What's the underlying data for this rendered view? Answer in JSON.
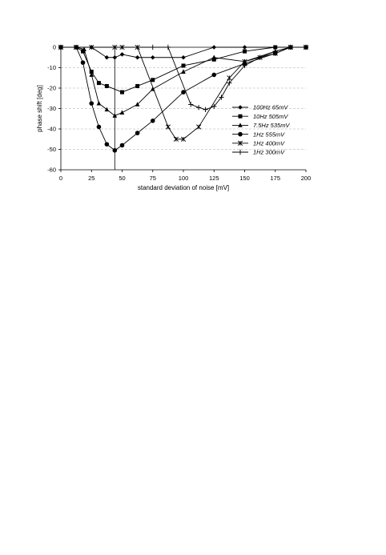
{
  "chart_data": {
    "type": "line",
    "xlabel": "standard deviation of noise [mV]",
    "ylabel": "phase shift [deg]",
    "xlim": [
      0,
      200
    ],
    "ylim": [
      -60,
      0
    ],
    "xticks": [
      0,
      25,
      50,
      75,
      100,
      125,
      150,
      175,
      200
    ],
    "yticks": [
      0,
      -10,
      -20,
      -30,
      -40,
      -50,
      -60
    ],
    "grid": "horizontal dashed",
    "vline": 44,
    "legend_position": "right",
    "series": [
      {
        "name": "100Hz   65mV",
        "marker": "diamond",
        "points": [
          [
            0,
            0
          ],
          [
            12.5,
            0
          ],
          [
            25,
            0
          ],
          [
            37.5,
            -5
          ],
          [
            44,
            -5
          ],
          [
            50,
            -3.5
          ],
          [
            62.5,
            -5
          ],
          [
            75,
            -5
          ],
          [
            100,
            -5
          ],
          [
            125,
            0
          ],
          [
            150,
            0
          ],
          [
            175,
            0
          ],
          [
            187.5,
            0
          ],
          [
            200,
            0
          ]
        ]
      },
      {
        "name": "10Hz   505mV",
        "marker": "square",
        "points": [
          [
            0,
            0
          ],
          [
            12.5,
            0
          ],
          [
            18,
            -2
          ],
          [
            25,
            -12
          ],
          [
            31,
            -17.5
          ],
          [
            37.5,
            -19
          ],
          [
            50,
            -22
          ],
          [
            62.5,
            -19
          ],
          [
            75,
            -16
          ],
          [
            100,
            -9
          ],
          [
            125,
            -6
          ],
          [
            150,
            -2
          ],
          [
            175,
            0
          ],
          [
            187.5,
            0
          ],
          [
            200,
            0
          ]
        ]
      },
      {
        "name": "7.5Hz  535mV",
        "marker": "triangle",
        "points": [
          [
            0,
            0
          ],
          [
            12.5,
            0
          ],
          [
            19,
            -1
          ],
          [
            25,
            -13.5
          ],
          [
            31,
            -27.5
          ],
          [
            37.5,
            -30.5
          ],
          [
            44,
            -33.5
          ],
          [
            50,
            -32
          ],
          [
            62.5,
            -28
          ],
          [
            75,
            -20.5
          ],
          [
            100,
            -12
          ],
          [
            125,
            -5
          ],
          [
            150,
            -7
          ],
          [
            175,
            -2
          ],
          [
            187.5,
            0
          ],
          [
            200,
            0
          ]
        ]
      },
      {
        "name": "1Hz   555mV",
        "marker": "circle",
        "points": [
          [
            0,
            0
          ],
          [
            12.5,
            0
          ],
          [
            18,
            -7.5
          ],
          [
            25,
            -27.5
          ],
          [
            31,
            -39
          ],
          [
            37.5,
            -47.5
          ],
          [
            44,
            -50.5
          ],
          [
            50,
            -48
          ],
          [
            62.5,
            -42
          ],
          [
            75,
            -36
          ],
          [
            100,
            -22
          ],
          [
            125,
            -13.5
          ],
          [
            150,
            -8
          ],
          [
            175,
            -3
          ],
          [
            187.5,
            0
          ],
          [
            200,
            0
          ]
        ]
      },
      {
        "name": "1Hz   400mV",
        "marker": "star",
        "points": [
          [
            0,
            0
          ],
          [
            12.5,
            0
          ],
          [
            25,
            0
          ],
          [
            44,
            0
          ],
          [
            50,
            0
          ],
          [
            62.5,
            0
          ],
          [
            87.5,
            -39
          ],
          [
            94,
            -45
          ],
          [
            100,
            -45
          ],
          [
            112.5,
            -39
          ],
          [
            137.5,
            -15
          ],
          [
            150,
            -7
          ],
          [
            162.5,
            -5
          ],
          [
            175,
            -3
          ],
          [
            187.5,
            0
          ],
          [
            200,
            0
          ]
        ]
      },
      {
        "name": "1Hz   300mV",
        "marker": "plus",
        "points": [
          [
            0,
            0
          ],
          [
            75,
            0
          ],
          [
            87.5,
            0
          ],
          [
            106,
            -28
          ],
          [
            112.5,
            -29.5
          ],
          [
            118,
            -30.5
          ],
          [
            125,
            -29
          ],
          [
            131,
            -24.5
          ],
          [
            137.5,
            -17.5
          ],
          [
            150,
            -9
          ],
          [
            162.5,
            -5
          ],
          [
            175,
            -2
          ],
          [
            187.5,
            0
          ],
          [
            200,
            0
          ]
        ]
      }
    ]
  }
}
